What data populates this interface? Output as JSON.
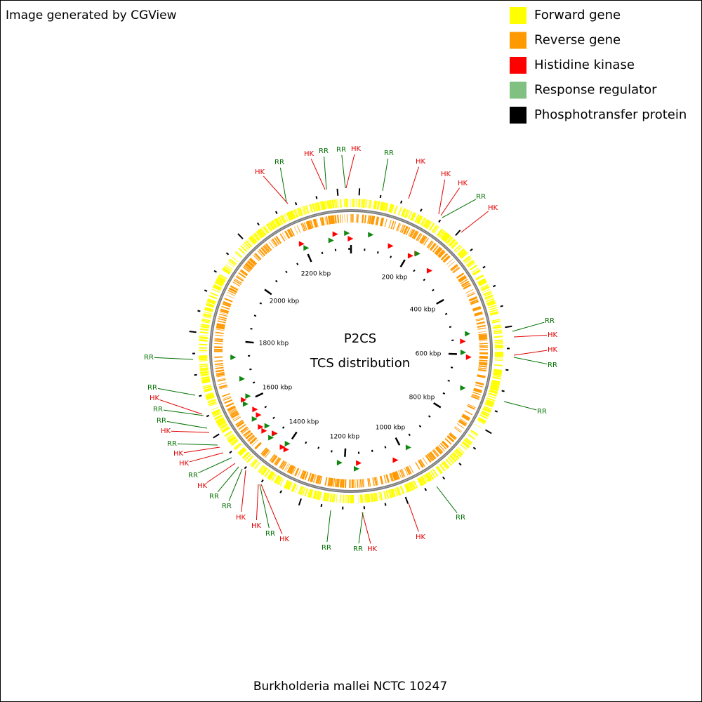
{
  "header": {
    "credit": "Image generated by CGView"
  },
  "legend": [
    {
      "label": "Forward gene",
      "color": "#ffff00"
    },
    {
      "label": "Reverse gene",
      "color": "#ff9900"
    },
    {
      "label": "Histidine kinase",
      "color": "#ff0000"
    },
    {
      "label": "Response regulator",
      "color": "#80c080"
    },
    {
      "label": "Phosphotransfer protein",
      "color": "#000000"
    }
  ],
  "map": {
    "title": "P2CS",
    "subtitle": "TCS distribution",
    "ticks": [
      "200 kbp",
      "400 kbp",
      "600 kbp",
      "800 kbp",
      "1000 kbp",
      "1200 kbp",
      "1400 kbp",
      "1600 kbp",
      "1800 kbp",
      "2000 kbp",
      "2200 kbp"
    ],
    "labels": [
      {
        "text": "HK",
        "color": "#e00000"
      },
      {
        "text": "RR",
        "color": "#007000"
      },
      {
        "text": "HK",
        "color": "#e00000"
      },
      {
        "text": "RR",
        "color": "#007000"
      },
      {
        "text": "RR",
        "color": "#007000"
      },
      {
        "text": "HK",
        "color": "#e00000"
      },
      {
        "text": "RR",
        "color": "#007000"
      },
      {
        "text": "HK",
        "color": "#e00000"
      },
      {
        "text": "HK",
        "color": "#e00000"
      },
      {
        "text": "HK",
        "color": "#e00000"
      },
      {
        "text": "RR",
        "color": "#007000"
      },
      {
        "text": "HK",
        "color": "#e00000"
      },
      {
        "text": "RR",
        "color": "#007000"
      },
      {
        "text": "HK",
        "color": "#e00000"
      },
      {
        "text": "HK",
        "color": "#e00000"
      },
      {
        "text": "RR",
        "color": "#007000"
      },
      {
        "text": "RR",
        "color": "#007000"
      },
      {
        "text": "RR",
        "color": "#007000"
      },
      {
        "text": "HK",
        "color": "#e00000"
      },
      {
        "text": "HK",
        "color": "#e00000"
      },
      {
        "text": "RR",
        "color": "#007000"
      },
      {
        "text": "RR",
        "color": "#007000"
      },
      {
        "text": "RR",
        "color": "#007000"
      },
      {
        "text": "RR",
        "color": "#007000"
      },
      {
        "text": "HK",
        "color": "#e00000"
      },
      {
        "text": "RR",
        "color": "#007000"
      },
      {
        "text": "RR",
        "color": "#007000"
      },
      {
        "text": "HK",
        "color": "#e00000"
      },
      {
        "text": "RR",
        "color": "#007000"
      },
      {
        "text": "HK",
        "color": "#e00000"
      },
      {
        "text": "HK",
        "color": "#e00000"
      },
      {
        "text": "RR",
        "color": "#007000"
      },
      {
        "text": "HK",
        "color": "#e00000"
      },
      {
        "text": "RR",
        "color": "#007000"
      },
      {
        "text": "RR",
        "color": "#007000"
      },
      {
        "text": "HK",
        "color": "#e00000"
      },
      {
        "text": "HK",
        "color": "#e00000"
      },
      {
        "text": "RR",
        "color": "#007000"
      },
      {
        "text": "HK",
        "color": "#e00000"
      }
    ]
  },
  "footer": "Burkholderia mallei NCTC 10247"
}
